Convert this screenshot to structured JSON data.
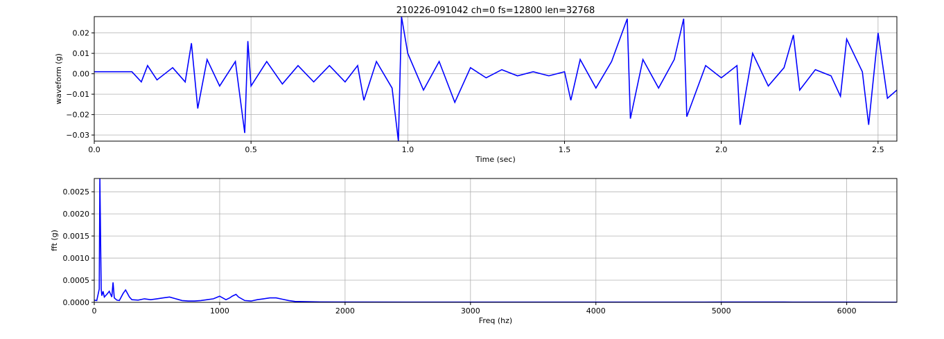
{
  "colors": {
    "line": "#0000ff",
    "grid": "#b0b0b0",
    "axes": "#000000",
    "background": "#ffffff"
  },
  "chart_data": [
    {
      "type": "line",
      "title": "210226-091042 ch=0 fs=12800 len=32768",
      "xlabel": "Time (sec)",
      "ylabel": "waveform (g)",
      "xlim": [
        0.0,
        2.56
      ],
      "ylim": [
        -0.033,
        0.028
      ],
      "xticks": [
        0.0,
        0.5,
        1.0,
        1.5,
        2.0,
        2.5
      ],
      "xtick_labels": [
        "0.0",
        "0.5",
        "1.0",
        "1.5",
        "2.0",
        "2.5"
      ],
      "yticks": [
        -0.03,
        -0.02,
        -0.01,
        0.0,
        0.01,
        0.02
      ],
      "ytick_labels": [
        "−0.03",
        "−0.02",
        "−0.01",
        "0.00",
        "0.01",
        "0.02"
      ],
      "grid": true,
      "series": [
        {
          "color": "#0000ff",
          "x": [
            0.0,
            0.06,
            0.12,
            0.15,
            0.17,
            0.2,
            0.25,
            0.29,
            0.31,
            0.33,
            0.36,
            0.4,
            0.45,
            0.48,
            0.49,
            0.5,
            0.55,
            0.6,
            0.65,
            0.7,
            0.75,
            0.8,
            0.84,
            0.86,
            0.9,
            0.95,
            0.97,
            0.98,
            1.0,
            1.05,
            1.1,
            1.15,
            1.2,
            1.25,
            1.3,
            1.35,
            1.4,
            1.45,
            1.5,
            1.52,
            1.55,
            1.6,
            1.65,
            1.7,
            1.71,
            1.75,
            1.8,
            1.85,
            1.88,
            1.89,
            1.95,
            2.0,
            2.05,
            2.06,
            2.1,
            2.15,
            2.2,
            2.23,
            2.25,
            2.3,
            2.35,
            2.38,
            2.4,
            2.45,
            2.47,
            2.5,
            2.53,
            2.56
          ],
          "y": [
            0.001,
            0.001,
            0.001,
            -0.004,
            0.004,
            -0.003,
            0.003,
            -0.004,
            0.015,
            -0.017,
            0.007,
            -0.006,
            0.006,
            -0.029,
            0.016,
            -0.006,
            0.006,
            -0.005,
            0.004,
            -0.004,
            0.004,
            -0.004,
            0.004,
            -0.013,
            0.006,
            -0.007,
            -0.033,
            0.028,
            0.01,
            -0.008,
            0.006,
            -0.014,
            0.003,
            -0.002,
            0.002,
            -0.001,
            0.001,
            -0.001,
            0.001,
            -0.013,
            0.007,
            -0.007,
            0.006,
            0.027,
            -0.022,
            0.007,
            -0.007,
            0.007,
            0.027,
            -0.021,
            0.004,
            -0.002,
            0.004,
            -0.025,
            0.01,
            -0.006,
            0.003,
            0.019,
            -0.008,
            0.002,
            -0.001,
            -0.011,
            0.017,
            0.001,
            -0.025,
            0.02,
            -0.012,
            -0.008
          ]
        }
      ]
    },
    {
      "type": "line",
      "title": "",
      "xlabel": "Freq (hz)",
      "ylabel": "fft (g)",
      "xlim": [
        0,
        6400
      ],
      "ylim": [
        0.0,
        0.0028
      ],
      "xticks": [
        0,
        1000,
        2000,
        3000,
        4000,
        5000,
        6000
      ],
      "xtick_labels": [
        "0",
        "1000",
        "2000",
        "3000",
        "4000",
        "5000",
        "6000"
      ],
      "yticks": [
        0.0,
        0.0005,
        0.001,
        0.0015,
        0.002,
        0.0025
      ],
      "ytick_labels": [
        "0.0000",
        "0.0005",
        "0.0010",
        "0.0015",
        "0.0020",
        "0.0025"
      ],
      "grid": true,
      "series": [
        {
          "color": "#0000ff",
          "x": [
            0,
            20,
            40,
            45,
            50,
            55,
            60,
            70,
            80,
            100,
            120,
            140,
            150,
            160,
            180,
            200,
            230,
            250,
            280,
            300,
            350,
            400,
            450,
            500,
            550,
            600,
            650,
            700,
            750,
            800,
            850,
            900,
            950,
            1000,
            1050,
            1080,
            1100,
            1130,
            1150,
            1200,
            1250,
            1300,
            1350,
            1400,
            1450,
            1500,
            1550,
            1600,
            1700,
            1800,
            2000,
            2500,
            3000,
            3500,
            4000,
            4500,
            5000,
            5500,
            6000,
            6400
          ],
          "y": [
            5e-05,
            4e-05,
            0.0003,
            0.0028,
            0.0016,
            0.0003,
            0.00015,
            0.00025,
            0.00012,
            0.00018,
            0.00025,
            0.00012,
            0.00045,
            0.0001,
            5e-05,
            4e-05,
            0.0002,
            0.00028,
            0.00012,
            6e-05,
            5e-05,
            8e-05,
            6e-05,
            8e-05,
            0.0001,
            0.00012,
            8e-05,
            4e-05,
            3e-05,
            3e-05,
            4e-05,
            6e-05,
            8e-05,
            0.00014,
            6e-05,
            0.0001,
            0.00014,
            0.00018,
            0.00012,
            4e-05,
            3e-05,
            6e-05,
            8e-05,
            0.0001,
            0.0001,
            7e-05,
            4e-05,
            2e-05,
            1.5e-05,
            1e-05,
            8e-06,
            5e-06,
            4e-06,
            4e-06,
            4e-06,
            5e-06,
            7e-06,
            6e-06,
            4e-06,
            3e-06
          ]
        }
      ]
    }
  ]
}
